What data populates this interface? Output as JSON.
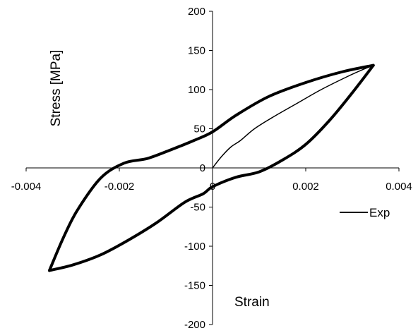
{
  "chart_data": {
    "type": "line",
    "xlabel": "Strain",
    "ylabel": "Stress [MPa]",
    "xlim": [
      -0.004,
      0.004
    ],
    "ylim": [
      -200,
      200
    ],
    "x_ticks": [
      -0.004,
      -0.002,
      0,
      0.002,
      0.004
    ],
    "x_tick_labels": [
      "-0.004",
      "-0.002",
      "0",
      "0.002",
      "0.004"
    ],
    "y_ticks": [
      -200,
      -150,
      -100,
      -50,
      0,
      50,
      100,
      150,
      200
    ],
    "y_tick_labels": [
      "-200",
      "-150",
      "-100",
      "-50",
      "0",
      "50",
      "100",
      "150",
      "200"
    ],
    "grid": false,
    "legend_position": "right",
    "series": [
      {
        "name": "Exp",
        "color": "#000000",
        "segments": [
          {
            "part": "initial-loading",
            "x": [
              0,
              0.0002,
              0.0004,
              0.0006,
              0.0009,
              0.0013,
              0.0018,
              0.0023,
              0.0028,
              0.0032,
              0.00345
            ],
            "y": [
              0,
              15,
              27,
              35,
              50,
              65,
              82,
              99,
              114,
              125,
              131
            ]
          },
          {
            "part": "unloading-to-compression",
            "x": [
              0.00345,
              0.0028,
              0.002,
              0.0012,
              0.0005,
              0,
              -0.0004,
              -0.0009,
              -0.0014,
              -0.0019,
              -0.0024,
              -0.0029,
              -0.0032,
              -0.0035
            ],
            "y": [
              131,
              123,
              109,
              91,
              67,
              46,
              35,
              23,
              12,
              6,
              -13,
              -54,
              -89,
              -131
            ]
          },
          {
            "part": "reloading-to-tension",
            "x": [
              -0.0035,
              -0.003,
              -0.0024,
              -0.0018,
              -0.0012,
              -0.0006,
              -0.0002,
              0,
              0.0005,
              0.001,
              0.0015,
              0.002,
              0.0025,
              0.003,
              0.00345
            ],
            "y": [
              -131,
              -124,
              -111,
              -92,
              -70,
              -44,
              -33,
              -24,
              -12,
              -5,
              10,
              30,
              60,
              96,
              131
            ]
          }
        ]
      }
    ]
  }
}
